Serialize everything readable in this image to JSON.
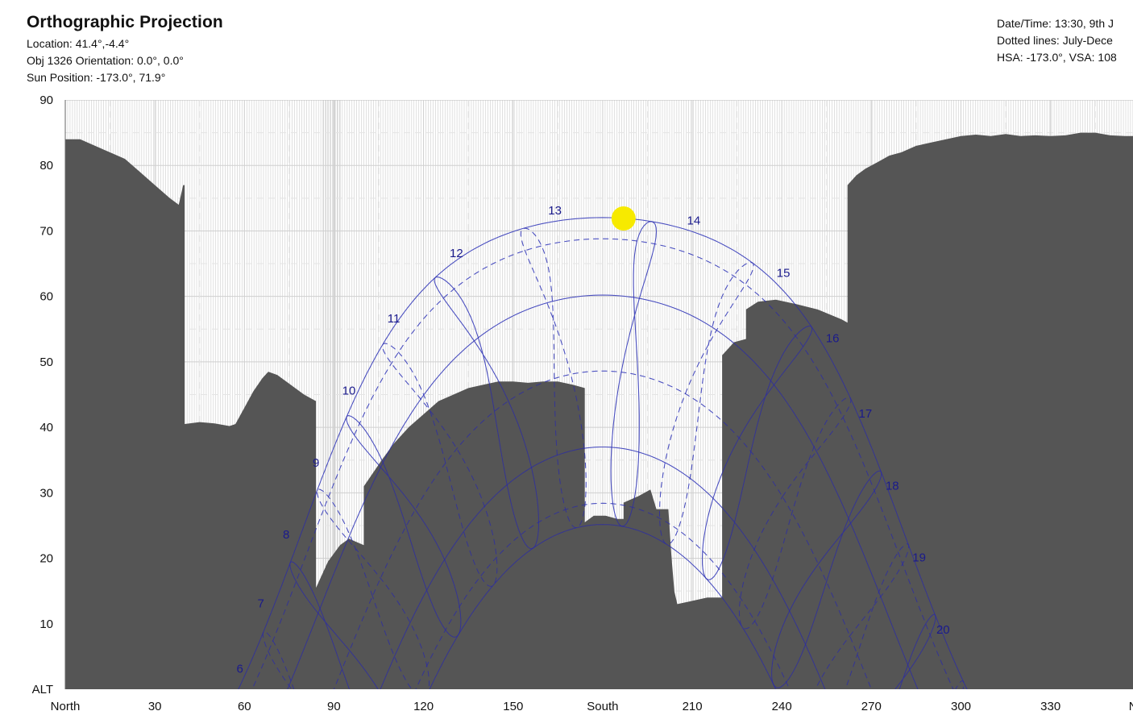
{
  "header": {
    "title": "Orthographic Projection",
    "location": "Location: 41.4°,-4.4°",
    "orientation": "Obj 1326 Orientation: 0.0°, 0.0°",
    "sun_position": "Sun Position: -173.0°, 71.9°",
    "datetime": "Date/Time: 13:30, 9th J",
    "dotted_lines": "Dotted lines: July-Dece",
    "hsa_vsa": "HSA: -173.0°, VSA: 108"
  },
  "colors": {
    "obstruction": "#555555",
    "sky_path": "#a9b5f5",
    "shaded_path": "#2a2aa8",
    "sun": "#f7ea00",
    "hour_label": "#1a1a8c"
  },
  "chart_data": {
    "type": "area",
    "xlabel": "",
    "ylabel": "ALT",
    "xlim": [
      0,
      360
    ],
    "ylim": [
      0,
      90
    ],
    "grid": true,
    "x_ticks": [
      {
        "value": 0,
        "label": "North"
      },
      {
        "value": 30,
        "label": "30"
      },
      {
        "value": 60,
        "label": "60"
      },
      {
        "value": 90,
        "label": "90"
      },
      {
        "value": 120,
        "label": "120"
      },
      {
        "value": 150,
        "label": "150"
      },
      {
        "value": 180,
        "label": "South"
      },
      {
        "value": 210,
        "label": "210"
      },
      {
        "value": 240,
        "label": "240"
      },
      {
        "value": 270,
        "label": "270"
      },
      {
        "value": 300,
        "label": "300"
      },
      {
        "value": 330,
        "label": "330"
      },
      {
        "value": 360,
        "label": "No"
      }
    ],
    "y_ticks": [
      {
        "value": 90,
        "label": "90"
      },
      {
        "value": 80,
        "label": "80"
      },
      {
        "value": 70,
        "label": "70"
      },
      {
        "value": 60,
        "label": "60"
      },
      {
        "value": 50,
        "label": "50"
      },
      {
        "value": 40,
        "label": "40"
      },
      {
        "value": 30,
        "label": "30"
      },
      {
        "value": 20,
        "label": "20"
      },
      {
        "value": 10,
        "label": "10"
      },
      {
        "value": 0,
        "label": "ALT"
      }
    ],
    "sun": {
      "azimuth": 187.0,
      "altitude": 71.9
    },
    "obstruction_profile": [
      [
        0,
        84
      ],
      [
        5,
        84
      ],
      [
        10,
        83
      ],
      [
        15,
        82
      ],
      [
        20,
        81
      ],
      [
        25,
        79
      ],
      [
        30,
        77
      ],
      [
        35,
        75
      ],
      [
        38,
        74
      ],
      [
        39.5,
        77
      ],
      [
        40,
        77
      ],
      [
        40,
        40.5
      ],
      [
        45,
        40.8
      ],
      [
        50,
        40.6
      ],
      [
        55,
        40.2
      ],
      [
        57,
        40.5
      ],
      [
        60,
        43
      ],
      [
        63,
        45.5
      ],
      [
        66,
        47.5
      ],
      [
        68,
        48.5
      ],
      [
        71,
        48
      ],
      [
        74,
        47
      ],
      [
        77,
        46
      ],
      [
        80,
        45
      ],
      [
        84,
        44
      ],
      [
        84,
        15.5
      ],
      [
        88,
        19.5
      ],
      [
        92,
        22
      ],
      [
        95,
        23
      ],
      [
        100,
        22
      ],
      [
        100,
        31
      ],
      [
        103,
        33
      ],
      [
        106,
        35
      ],
      [
        110,
        37.5
      ],
      [
        115,
        40
      ],
      [
        120,
        42
      ],
      [
        125,
        44
      ],
      [
        130,
        45
      ],
      [
        135,
        46
      ],
      [
        140,
        46.5
      ],
      [
        145,
        47
      ],
      [
        150,
        47
      ],
      [
        155,
        46.8
      ],
      [
        160,
        47
      ],
      [
        165,
        47
      ],
      [
        170,
        46.5
      ],
      [
        174,
        46
      ],
      [
        174,
        25.5
      ],
      [
        177,
        26.5
      ],
      [
        181,
        26.5
      ],
      [
        185,
        26
      ],
      [
        187,
        26
      ],
      [
        187,
        28.5
      ],
      [
        192,
        29.5
      ],
      [
        196,
        30.5
      ],
      [
        198,
        27.5
      ],
      [
        202,
        27.5
      ],
      [
        203,
        20.5
      ],
      [
        204,
        15
      ],
      [
        205,
        13
      ],
      [
        210,
        13.5
      ],
      [
        215,
        14
      ],
      [
        220,
        14
      ],
      [
        220,
        51
      ],
      [
        224,
        53
      ],
      [
        228,
        53.5
      ],
      [
        228,
        58
      ],
      [
        232,
        59.2
      ],
      [
        238,
        59.5
      ],
      [
        245,
        58.8
      ],
      [
        252,
        58
      ],
      [
        260,
        56.5
      ],
      [
        262,
        56
      ],
      [
        262,
        77
      ],
      [
        265,
        78.5
      ],
      [
        268,
        79.5
      ],
      [
        272,
        80.5
      ],
      [
        276,
        81.5
      ],
      [
        280,
        82
      ],
      [
        285,
        83
      ],
      [
        290,
        83.5
      ],
      [
        295,
        84
      ],
      [
        300,
        84.5
      ],
      [
        305,
        84.7
      ],
      [
        310,
        84.5
      ],
      [
        315,
        84.8
      ],
      [
        320,
        84.5
      ],
      [
        325,
        84.6
      ],
      [
        330,
        84.5
      ],
      [
        335,
        84.6
      ],
      [
        340,
        85
      ],
      [
        345,
        85
      ],
      [
        350,
        84.6
      ],
      [
        355,
        84.5
      ],
      [
        360,
        84.5
      ]
    ],
    "declination_series": [
      {
        "declination": 23.44,
        "style": "solid"
      },
      {
        "declination": 20.2,
        "style": "dashed"
      },
      {
        "declination": 11.6,
        "style": "solid"
      },
      {
        "declination": 0,
        "style": "dashed"
      },
      {
        "declination": -11.6,
        "style": "solid"
      },
      {
        "declination": -20.2,
        "style": "dashed"
      },
      {
        "declination": -23.44,
        "style": "solid"
      }
    ],
    "latitude": 41.4,
    "hour_labels": [
      {
        "hour": 6,
        "label": "6",
        "azimuth": 58.5,
        "altitude": 2.5
      },
      {
        "hour": 7,
        "label": "7",
        "azimuth": 65.5,
        "altitude": 12.5
      },
      {
        "hour": 8,
        "label": "8",
        "azimuth": 74,
        "altitude": 23
      },
      {
        "hour": 9,
        "label": "9",
        "azimuth": 84,
        "altitude": 34
      },
      {
        "hour": 10,
        "label": "10",
        "azimuth": 95,
        "altitude": 45
      },
      {
        "hour": 11,
        "label": "11",
        "azimuth": 110,
        "altitude": 56
      },
      {
        "hour": 12,
        "label": "12",
        "azimuth": 131,
        "altitude": 66
      },
      {
        "hour": 13,
        "label": "13",
        "azimuth": 164,
        "altitude": 72.5
      },
      {
        "hour": 14,
        "label": "14",
        "azimuth": 210.5,
        "altitude": 71
      },
      {
        "hour": 15,
        "label": "15",
        "azimuth": 240.5,
        "altitude": 63
      },
      {
        "hour": 16,
        "label": "16",
        "azimuth": 257,
        "altitude": 53
      },
      {
        "hour": 17,
        "label": "17",
        "azimuth": 268,
        "altitude": 41.5
      },
      {
        "hour": 18,
        "label": "18",
        "azimuth": 277,
        "altitude": 30.5
      },
      {
        "hour": 19,
        "label": "19",
        "azimuth": 286,
        "altitude": 19.5
      },
      {
        "hour": 20,
        "label": "20",
        "azimuth": 294,
        "altitude": 8.5
      }
    ]
  }
}
